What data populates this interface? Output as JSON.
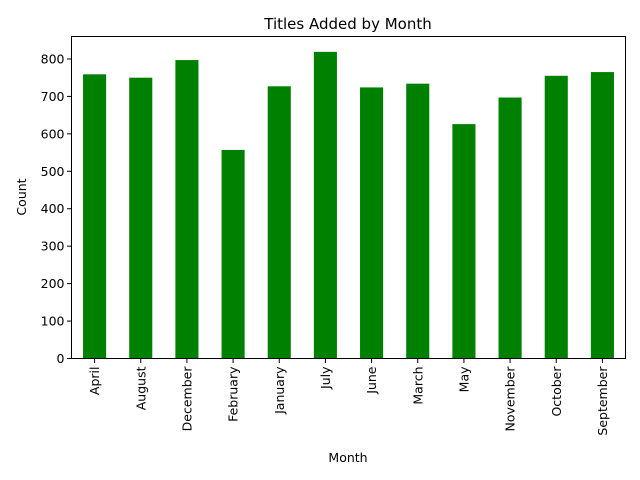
{
  "chart_data": {
    "type": "bar",
    "title": "Titles Added by Month",
    "xlabel": "Month",
    "ylabel": "Count",
    "categories": [
      "April",
      "August",
      "December",
      "February",
      "January",
      "July",
      "June",
      "March",
      "May",
      "November",
      "October",
      "September"
    ],
    "values": [
      759,
      750,
      797,
      557,
      727,
      819,
      724,
      734,
      626,
      697,
      755,
      765
    ],
    "ylim": [
      0,
      860
    ],
    "yticks": [
      0,
      100,
      200,
      300,
      400,
      500,
      600,
      700,
      800
    ],
    "bar_color": "#008000",
    "grid": false,
    "legend": "none"
  }
}
